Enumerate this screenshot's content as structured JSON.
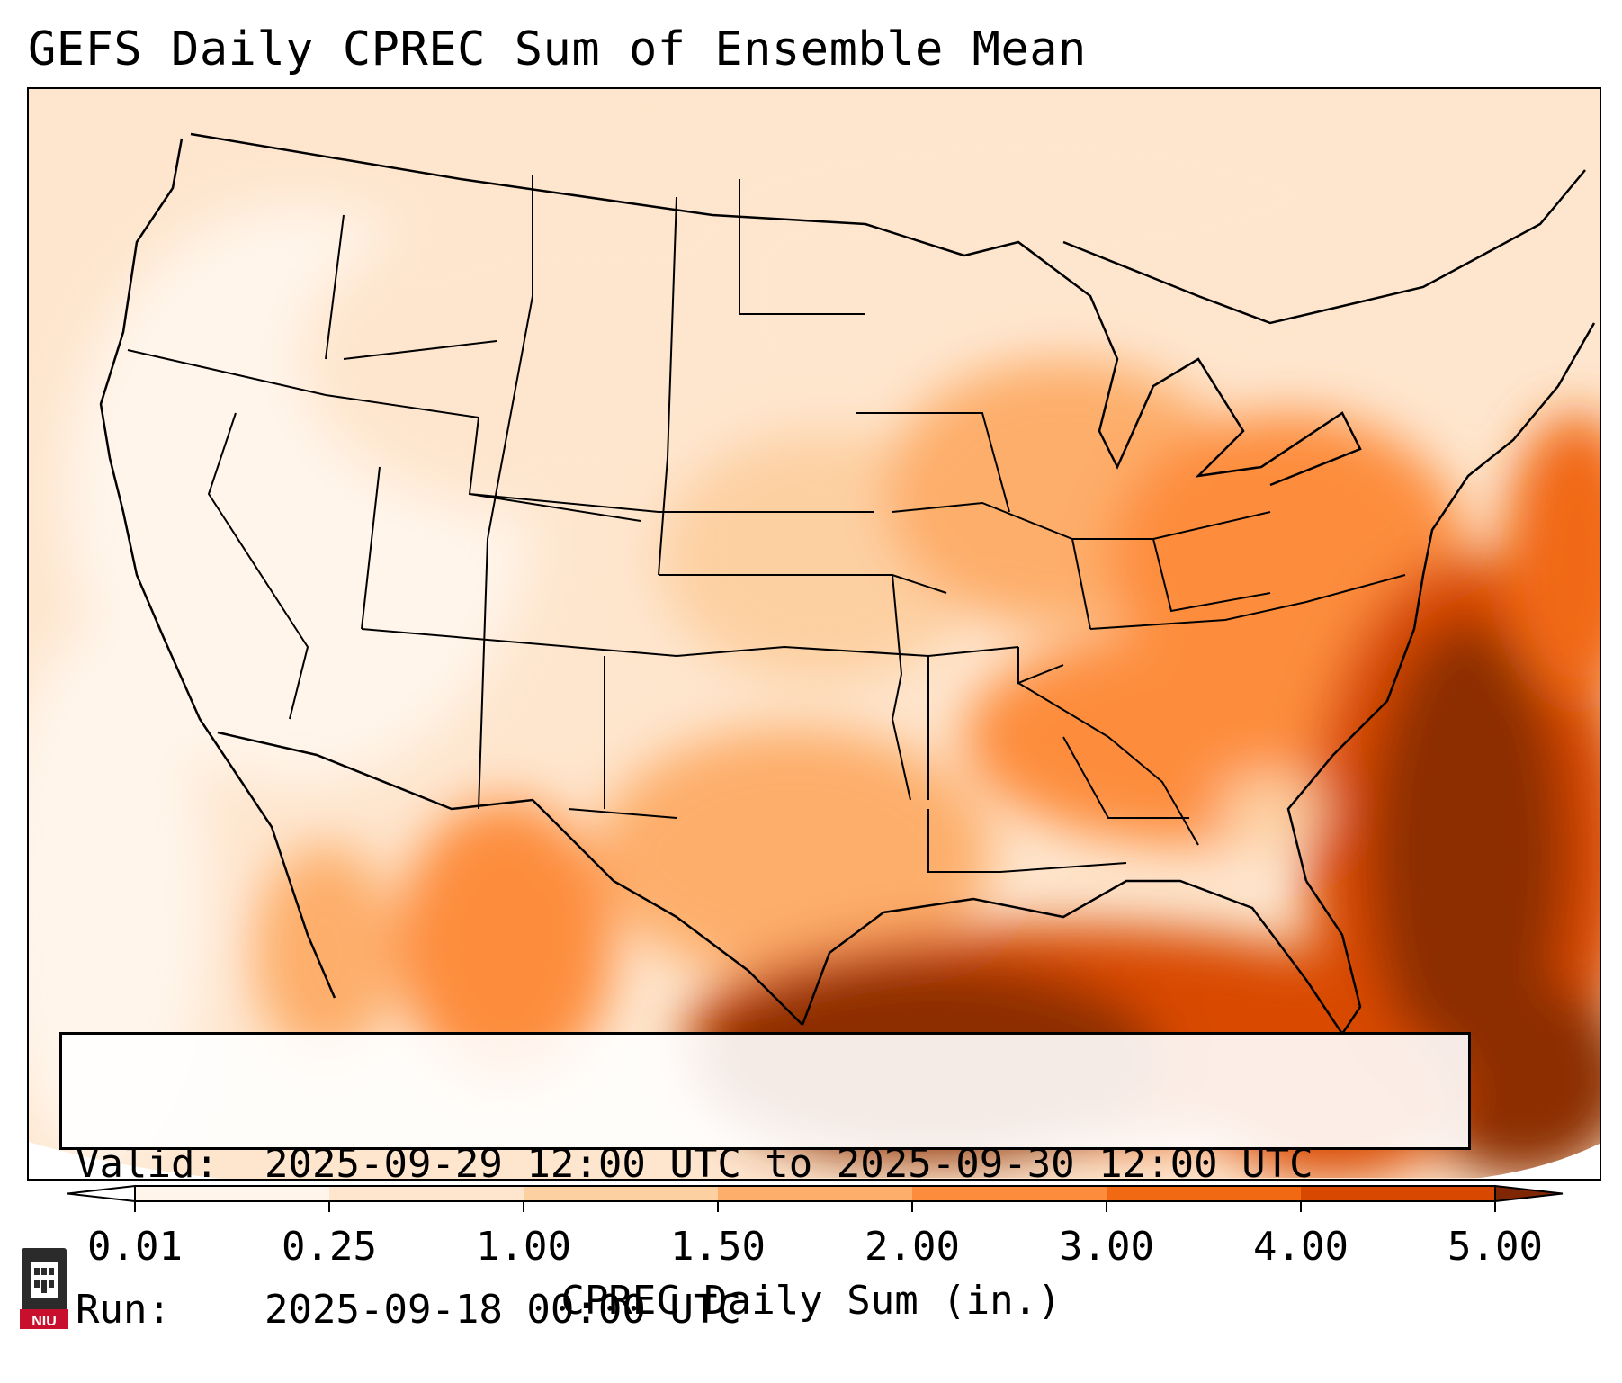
{
  "title": "GEFS Daily CPREC Sum of Ensemble Mean",
  "info": {
    "valid_label": "Valid:",
    "valid_value": "2025-09-29 12:00 UTC to 2025-09-30 12:00 UTC",
    "run_label": "Run:",
    "run_value": "2025-09-18 00:00 UTC"
  },
  "colorbar": {
    "label": "CPREC Daily Sum (in.)",
    "ticks": [
      "0.01",
      "0.25",
      "1.00",
      "1.50",
      "2.00",
      "3.00",
      "4.00",
      "5.00"
    ],
    "colors": [
      "#fff5eb",
      "#fee6ce",
      "#fdd0a2",
      "#fdae6b",
      "#fd8d3c",
      "#f16913",
      "#d94801",
      "#8c2d04"
    ],
    "under_color": "#ffffff",
    "over_color": "#7f2704",
    "extend": "both"
  },
  "logo": {
    "text": "NIU",
    "color": "#c8102e"
  },
  "map": {
    "projection": "Lambert conformal, CONUS",
    "features": [
      "state-borders",
      "coastlines",
      "country-borders"
    ],
    "background_color": "#ffffff"
  }
}
